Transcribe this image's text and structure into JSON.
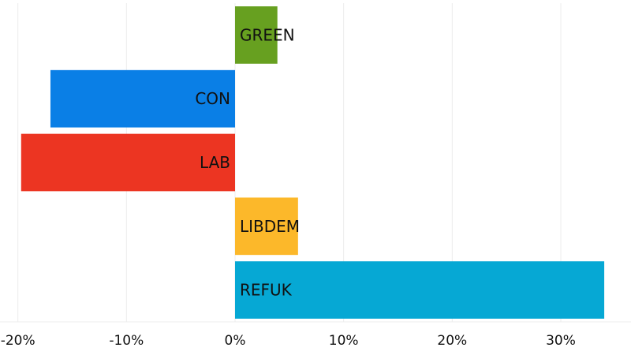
{
  "chart_data": {
    "type": "bar",
    "orientation": "horizontal",
    "categories": [
      "GREEN",
      "CON",
      "LAB",
      "LIBDEM",
      "REFUK"
    ],
    "values": [
      3.9,
      -17.0,
      -19.7,
      5.8,
      34.0
    ],
    "colors": [
      "#67a020",
      "#0a7fe6",
      "#ec3522",
      "#fcb82a",
      "#06a8d4"
    ],
    "xlim": [
      -21.5,
      36
    ],
    "x_ticks": [
      -20,
      -10,
      0,
      10,
      20,
      30
    ],
    "x_tick_labels": [
      "-20%",
      "-10%",
      "0%",
      "10%",
      "20%",
      "30%"
    ],
    "grid": true,
    "title": "",
    "xlabel": "",
    "ylabel": ""
  }
}
